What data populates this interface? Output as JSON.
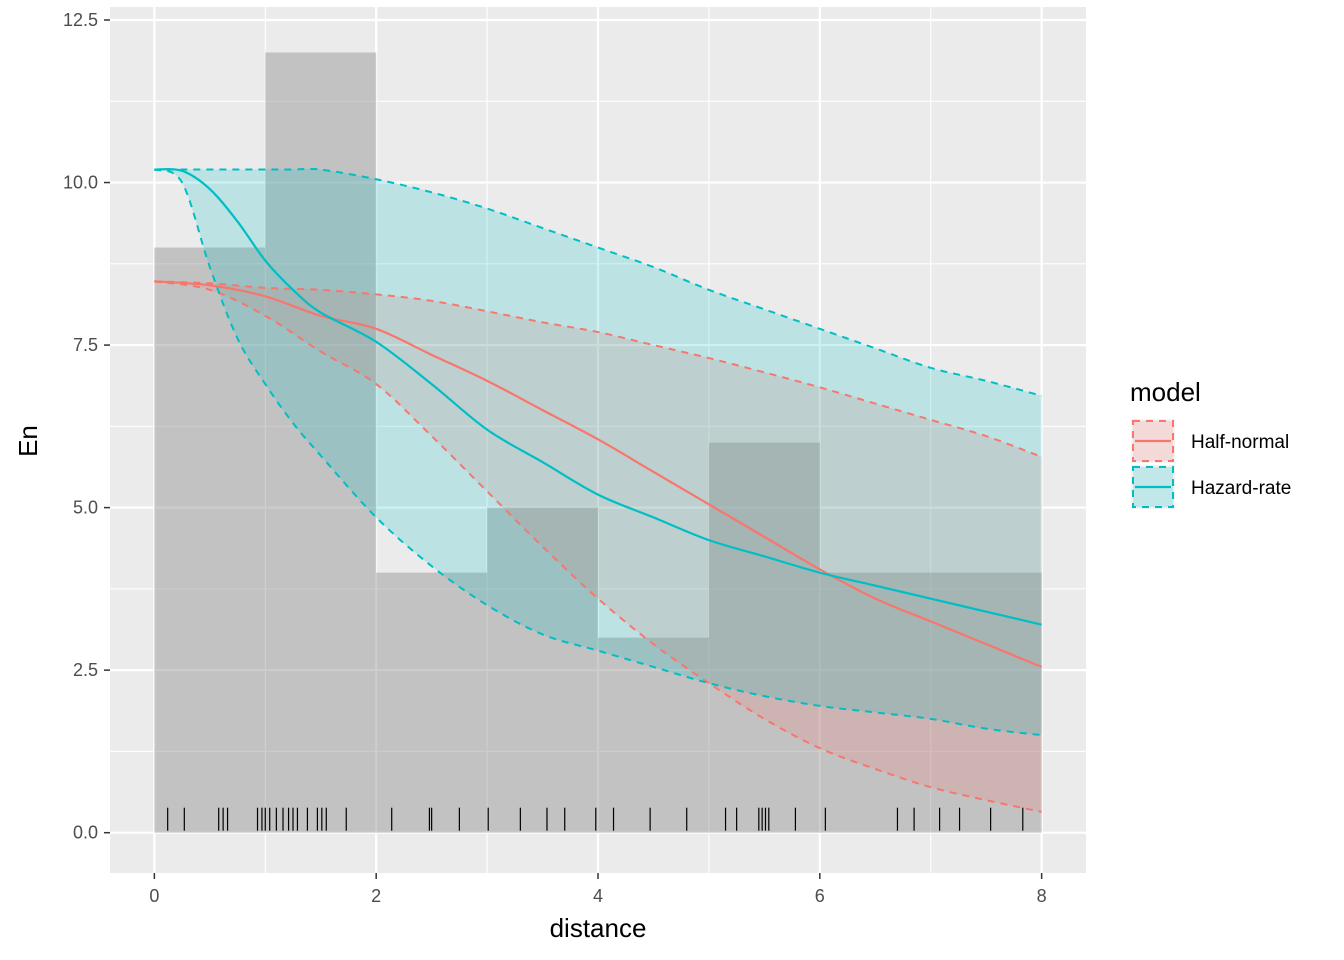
{
  "chart_data": {
    "type": "area",
    "title": "",
    "xlabel": "distance",
    "ylabel": "En",
    "xlim": [
      -0.4,
      8.4
    ],
    "ylim": [
      -0.62,
      12.7
    ],
    "x_ticks": [
      0,
      2,
      4,
      6,
      8
    ],
    "x_tick_labels": [
      "0",
      "2",
      "4",
      "6",
      "8"
    ],
    "y_ticks": [
      0,
      2.5,
      5,
      7.5,
      10,
      12.5
    ],
    "y_tick_labels": [
      "0.0",
      "2.5",
      "5.0",
      "7.5",
      "10.0",
      "12.5"
    ],
    "grid": true,
    "histogram": {
      "bin_edges": [
        0,
        1,
        2,
        3,
        4,
        5,
        6,
        7,
        8
      ],
      "counts": [
        9,
        12,
        4,
        5,
        3,
        6,
        4,
        4
      ],
      "color": "#999999"
    },
    "rug": [
      0.12,
      0.27,
      0.58,
      0.62,
      0.66,
      0.93,
      0.97,
      1.0,
      1.04,
      1.1,
      1.16,
      1.21,
      1.25,
      1.29,
      1.38,
      1.47,
      1.51,
      1.55,
      1.73,
      2.14,
      2.48,
      2.5,
      2.75,
      3.01,
      3.3,
      3.54,
      3.7,
      3.98,
      4.14,
      4.47,
      4.8,
      5.15,
      5.25,
      5.45,
      5.48,
      5.51,
      5.54,
      5.78,
      6.05,
      6.7,
      6.85,
      7.08,
      7.26,
      7.54,
      7.83
    ],
    "legend": {
      "title": "model",
      "position": "right",
      "entries": [
        "Half-normal",
        "Hazard-rate"
      ]
    },
    "series": [
      {
        "name": "Half-normal",
        "color": "#F8766D",
        "x": [
          0,
          0.5,
          1,
          1.5,
          2,
          2.5,
          3,
          3.5,
          4,
          4.5,
          5,
          5.5,
          6,
          6.5,
          7,
          7.5,
          8
        ],
        "y": [
          8.48,
          8.42,
          8.25,
          7.95,
          7.75,
          7.35,
          6.95,
          6.5,
          6.05,
          5.55,
          5.05,
          4.55,
          4.05,
          3.6,
          3.25,
          2.9,
          2.55
        ],
        "lower": [
          8.48,
          8.35,
          7.95,
          7.4,
          6.9,
          6.1,
          5.25,
          4.4,
          3.6,
          2.9,
          2.3,
          1.75,
          1.3,
          0.98,
          0.7,
          0.5,
          0.32
        ],
        "upper": [
          8.48,
          8.45,
          8.38,
          8.35,
          8.28,
          8.18,
          8.02,
          7.85,
          7.7,
          7.5,
          7.3,
          7.08,
          6.85,
          6.6,
          6.35,
          6.1,
          5.78
        ]
      },
      {
        "name": "Hazard-rate",
        "color": "#00BFC4",
        "x": [
          0,
          0.25,
          0.5,
          0.75,
          1,
          1.25,
          1.5,
          2,
          2.5,
          3,
          3.5,
          4,
          4.5,
          5,
          5.5,
          6,
          6.5,
          7,
          7.5,
          8
        ],
        "y": [
          10.2,
          10.18,
          9.9,
          9.4,
          8.8,
          8.35,
          8.0,
          7.55,
          6.9,
          6.2,
          5.7,
          5.2,
          4.85,
          4.5,
          4.25,
          4.0,
          3.8,
          3.6,
          3.4,
          3.2
        ],
        "lower": [
          10.2,
          10.0,
          8.7,
          7.6,
          6.9,
          6.3,
          5.8,
          4.85,
          4.1,
          3.5,
          3.05,
          2.8,
          2.55,
          2.3,
          2.1,
          1.95,
          1.85,
          1.75,
          1.6,
          1.5
        ],
        "upper": [
          10.2,
          10.2,
          10.2,
          10.2,
          10.2,
          10.2,
          10.2,
          10.05,
          9.85,
          9.6,
          9.3,
          9.0,
          8.7,
          8.35,
          8.05,
          7.75,
          7.45,
          7.15,
          6.95,
          6.72
        ]
      }
    ]
  }
}
